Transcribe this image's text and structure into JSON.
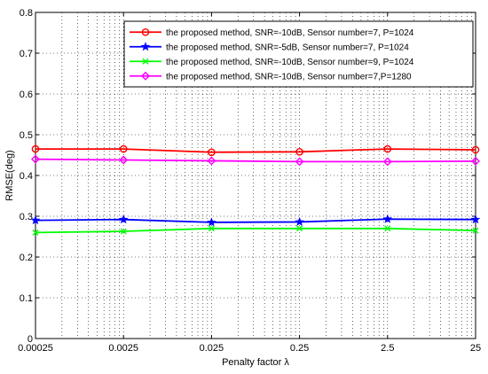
{
  "chart_data": {
    "type": "line",
    "xscale": "log",
    "x": [
      0.00025,
      0.0025,
      0.025,
      0.25,
      2.5,
      25
    ],
    "xticks": [
      "0.00025",
      "0.0025",
      "0.025",
      "0.25",
      "2.5",
      "25"
    ],
    "yticks": [
      "0",
      "0.1",
      "0.2",
      "0.3",
      "0.4",
      "0.5",
      "0.6",
      "0.7",
      "0.8"
    ],
    "ylim": [
      0,
      0.8
    ],
    "xlabel": "Penalty factor λ",
    "ylabel": "RMSE(deg)",
    "grid": true,
    "legend_position": "top-right",
    "series": [
      {
        "name": "the proposed method, SNR=-10dB, Sensor number=7, P=1024",
        "color": "#ff0000",
        "marker": "circle",
        "values": [
          0.465,
          0.465,
          0.457,
          0.458,
          0.465,
          0.463
        ]
      },
      {
        "name": "the proposed method, SNR=-5dB, Sensor number=7, P=1024",
        "color": "#0000ff",
        "marker": "star",
        "values": [
          0.29,
          0.292,
          0.285,
          0.286,
          0.293,
          0.292
        ]
      },
      {
        "name": "the proposed method, SNR=-10dB, Sensor number=9, P=1024",
        "color": "#00ff00",
        "marker": "x",
        "values": [
          0.26,
          0.263,
          0.27,
          0.27,
          0.27,
          0.265
        ]
      },
      {
        "name": "the proposed method, SNR=-10dB, Sensor number=7,P=1280",
        "color": "#ff00ff",
        "marker": "diamond",
        "values": [
          0.44,
          0.438,
          0.436,
          0.434,
          0.434,
          0.435
        ]
      }
    ]
  }
}
